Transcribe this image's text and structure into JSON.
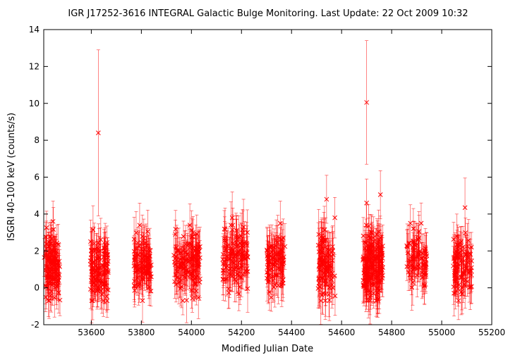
{
  "chart_data": {
    "type": "scatter",
    "title": "IGR J17252-3616   INTEGRAL Galactic Bulge Monitoring.  Last Update: 22 Oct 2009 10:32",
    "xlabel": "Modified Julian Date",
    "ylabel": "ISGRI 40-100 keV (counts/s)",
    "xlim": [
      53410,
      55200
    ],
    "ylim": [
      -2,
      14
    ],
    "xticks": [
      53600,
      53800,
      54000,
      54200,
      54400,
      54600,
      54800,
      55000,
      55200
    ],
    "yticks": [
      -2,
      0,
      2,
      4,
      6,
      8,
      10,
      12,
      14
    ],
    "grid": false,
    "legend": "none",
    "color": "#ff0000",
    "marker": "x",
    "error_bars": true,
    "clusters": [
      {
        "x_start": 53412,
        "x_end": 53475,
        "n": 110,
        "median": 1.1,
        "spread": 0.85,
        "err": 1.0
      },
      {
        "x_start": 53596,
        "x_end": 53668,
        "n": 110,
        "median": 1.0,
        "spread": 0.85,
        "err": 1.0
      },
      {
        "x_start": 53770,
        "x_end": 53840,
        "n": 100,
        "median": 1.3,
        "spread": 0.75,
        "err": 1.0
      },
      {
        "x_start": 53930,
        "x_end": 54035,
        "n": 130,
        "median": 1.2,
        "spread": 0.8,
        "err": 1.0
      },
      {
        "x_start": 54125,
        "x_end": 54225,
        "n": 120,
        "median": 1.5,
        "spread": 0.85,
        "err": 1.05
      },
      {
        "x_start": 54300,
        "x_end": 54375,
        "n": 90,
        "median": 1.3,
        "spread": 0.75,
        "err": 1.0
      },
      {
        "x_start": 54505,
        "x_end": 54575,
        "n": 90,
        "median": 1.2,
        "spread": 0.9,
        "err": 1.1
      },
      {
        "x_start": 54685,
        "x_end": 54765,
        "n": 170,
        "median": 1.2,
        "spread": 0.95,
        "err": 1.05
      },
      {
        "x_start": 54860,
        "x_end": 54940,
        "n": 80,
        "median": 1.6,
        "spread": 0.8,
        "err": 1.0
      },
      {
        "x_start": 55045,
        "x_end": 55120,
        "n": 90,
        "median": 1.2,
        "spread": 0.75,
        "err": 1.0
      }
    ],
    "notable_points": [
      {
        "x": 53628,
        "y": 8.4,
        "err": 4.5
      },
      {
        "x": 54700,
        "y": 10.05,
        "err": 3.35
      },
      {
        "x": 54700,
        "y": 4.6,
        "err": 1.3
      },
      {
        "x": 54755,
        "y": 5.05,
        "err": 1.3
      },
      {
        "x": 54540,
        "y": 4.8,
        "err": 1.3
      },
      {
        "x": 54573,
        "y": 3.8,
        "err": 1.1
      },
      {
        "x": 54163,
        "y": 3.8,
        "err": 1.4
      },
      {
        "x": 55093,
        "y": 4.35,
        "err": 1.6
      },
      {
        "x": 53447,
        "y": 3.6,
        "err": 1.1
      },
      {
        "x": 53607,
        "y": 3.15,
        "err": 1.3
      },
      {
        "x": 54918,
        "y": 3.5,
        "err": 1.1
      },
      {
        "x": 54875,
        "y": 3.5,
        "err": 1.0
      },
      {
        "x": 54208,
        "y": 3.3,
        "err": 1.5
      },
      {
        "x": 54355,
        "y": 3.5,
        "err": 1.2
      },
      {
        "x": 55060,
        "y": 2.8,
        "err": 1.2
      },
      {
        "x": 53418,
        "y": -0.5,
        "err": 0.8
      },
      {
        "x": 54745,
        "y": -0.6,
        "err": 0.8
      }
    ]
  }
}
